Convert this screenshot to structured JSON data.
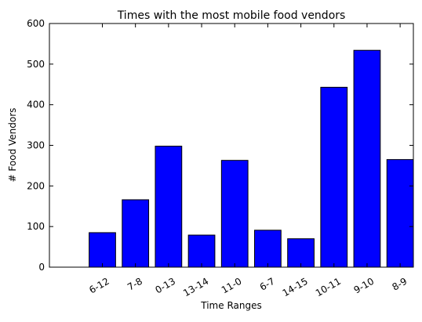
{
  "chart_data": {
    "type": "bar",
    "title": "Times with the most mobile food vendors",
    "xlabel": "Time Ranges",
    "ylabel": "# Food Vendors",
    "categories": [
      "6-12",
      "7-8",
      "0-13",
      "13-14",
      "11-0",
      "6-7",
      "14-15",
      "10-11",
      "9-10",
      "8-9"
    ],
    "values": [
      85,
      166,
      298,
      79,
      263,
      91,
      70,
      443,
      534,
      265
    ],
    "ylim": [
      0,
      600
    ],
    "yticks": [
      0,
      100,
      200,
      300,
      400,
      500,
      600
    ],
    "grid": false,
    "legend": "none",
    "bar_color": "#0000ff",
    "edge_color": "#000000",
    "tick_rotation_deg": -30
  }
}
